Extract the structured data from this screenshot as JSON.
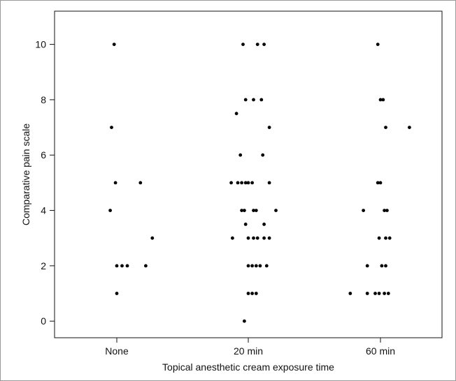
{
  "chart_data": {
    "type": "scatter",
    "title": "",
    "xlabel": "Topical anesthetic cream exposure time",
    "ylabel": "Comparative pain scale",
    "categories": [
      "None",
      "20 min",
      "60 min"
    ],
    "ylim": [
      -0.6,
      11.2
    ],
    "yticks": [
      0,
      2,
      4,
      6,
      8,
      10
    ],
    "ytick_labels": [
      "0",
      "2",
      "4",
      "6",
      "8",
      "10"
    ],
    "grid": false,
    "legend": "none",
    "series": [
      {
        "category": "None",
        "values": [
          10,
          7,
          5,
          5,
          4,
          3,
          2,
          2,
          2,
          2,
          1
        ],
        "jitter": [
          -0.02,
          -0.04,
          -0.01,
          0.18,
          -0.05,
          0.27,
          0.0,
          0.04,
          0.08,
          0.22,
          0.0
        ]
      },
      {
        "category": "20 min",
        "values": [
          10,
          10,
          10,
          8,
          8,
          8,
          7.5,
          7,
          6,
          6,
          5,
          5,
          5,
          5,
          5,
          5,
          5,
          4,
          4,
          4,
          4,
          4,
          3.5,
          3.5,
          3,
          3,
          3,
          3,
          3,
          3,
          2,
          2,
          2,
          2,
          2,
          1,
          1,
          1,
          0
        ],
        "jitter": [
          -0.04,
          0.07,
          0.12,
          -0.02,
          0.04,
          0.1,
          -0.09,
          0.16,
          -0.06,
          0.11,
          -0.13,
          -0.08,
          -0.05,
          -0.02,
          0.0,
          0.03,
          0.16,
          -0.05,
          -0.03,
          0.04,
          0.06,
          0.21,
          -0.02,
          0.12,
          -0.12,
          0.0,
          0.04,
          0.07,
          0.12,
          0.16,
          0.0,
          0.03,
          0.06,
          0.09,
          0.14,
          0.0,
          0.03,
          0.06,
          -0.03
        ],
        "marker_color": "#000000"
      },
      {
        "category": "60 min",
        "values": [
          10,
          8,
          8,
          7,
          7,
          5,
          5,
          4,
          4,
          4,
          3,
          3,
          3,
          2,
          2,
          2,
          1,
          1,
          1,
          1,
          1,
          1
        ],
        "jitter": [
          -0.02,
          0.0,
          0.02,
          0.04,
          0.22,
          -0.02,
          0.0,
          -0.13,
          0.03,
          0.05,
          -0.01,
          0.04,
          0.07,
          -0.1,
          0.01,
          0.04,
          -0.23,
          -0.1,
          -0.04,
          -0.01,
          0.03,
          0.06
        ]
      }
    ],
    "marker_color": "#000000"
  }
}
